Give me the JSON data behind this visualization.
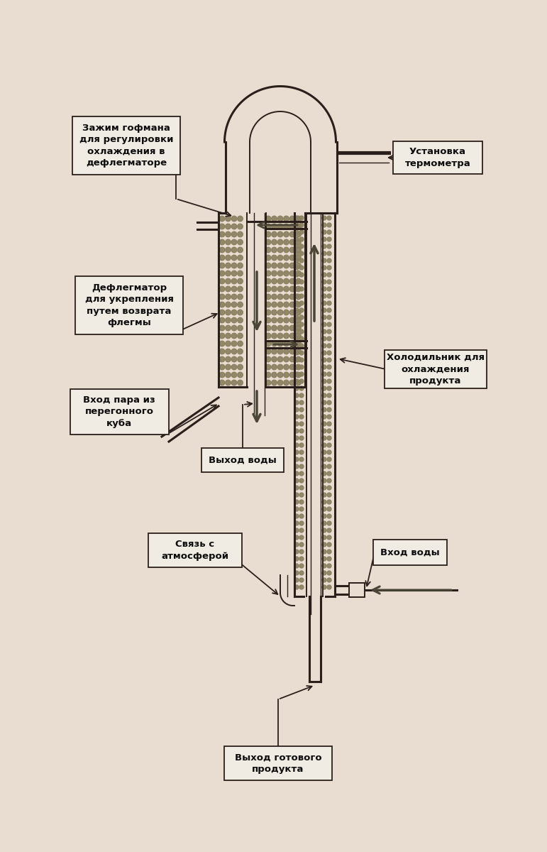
{
  "bg_color": "#e8ddd0",
  "line_color": "#2a1f1a",
  "packing_color": "#8a8060",
  "arrow_color": "#4a4535",
  "label_bg": "#f0ebe3",
  "label_border": "#2a1f1a",
  "labels": {
    "hofman_clamp": "Зажим гофмана\nдля регулировки\nохлаждения в\nдефлегматоре",
    "thermometer": "Установка\nтермометра",
    "dephlegmator": "Дефлегматор\nдля укрепления\nпутем возврата\nфлегмы",
    "cooler": "Холодильник для\nохлаждения\nпродукта",
    "steam_in": "Вход пара из\nперегонного\nкуба",
    "water_out": "Выход воды",
    "atmosphere": "Связь с\nатмосферой",
    "water_in": "Вход воды",
    "product_out": "Выход готового\nпродукта"
  },
  "font_size": 9.5
}
